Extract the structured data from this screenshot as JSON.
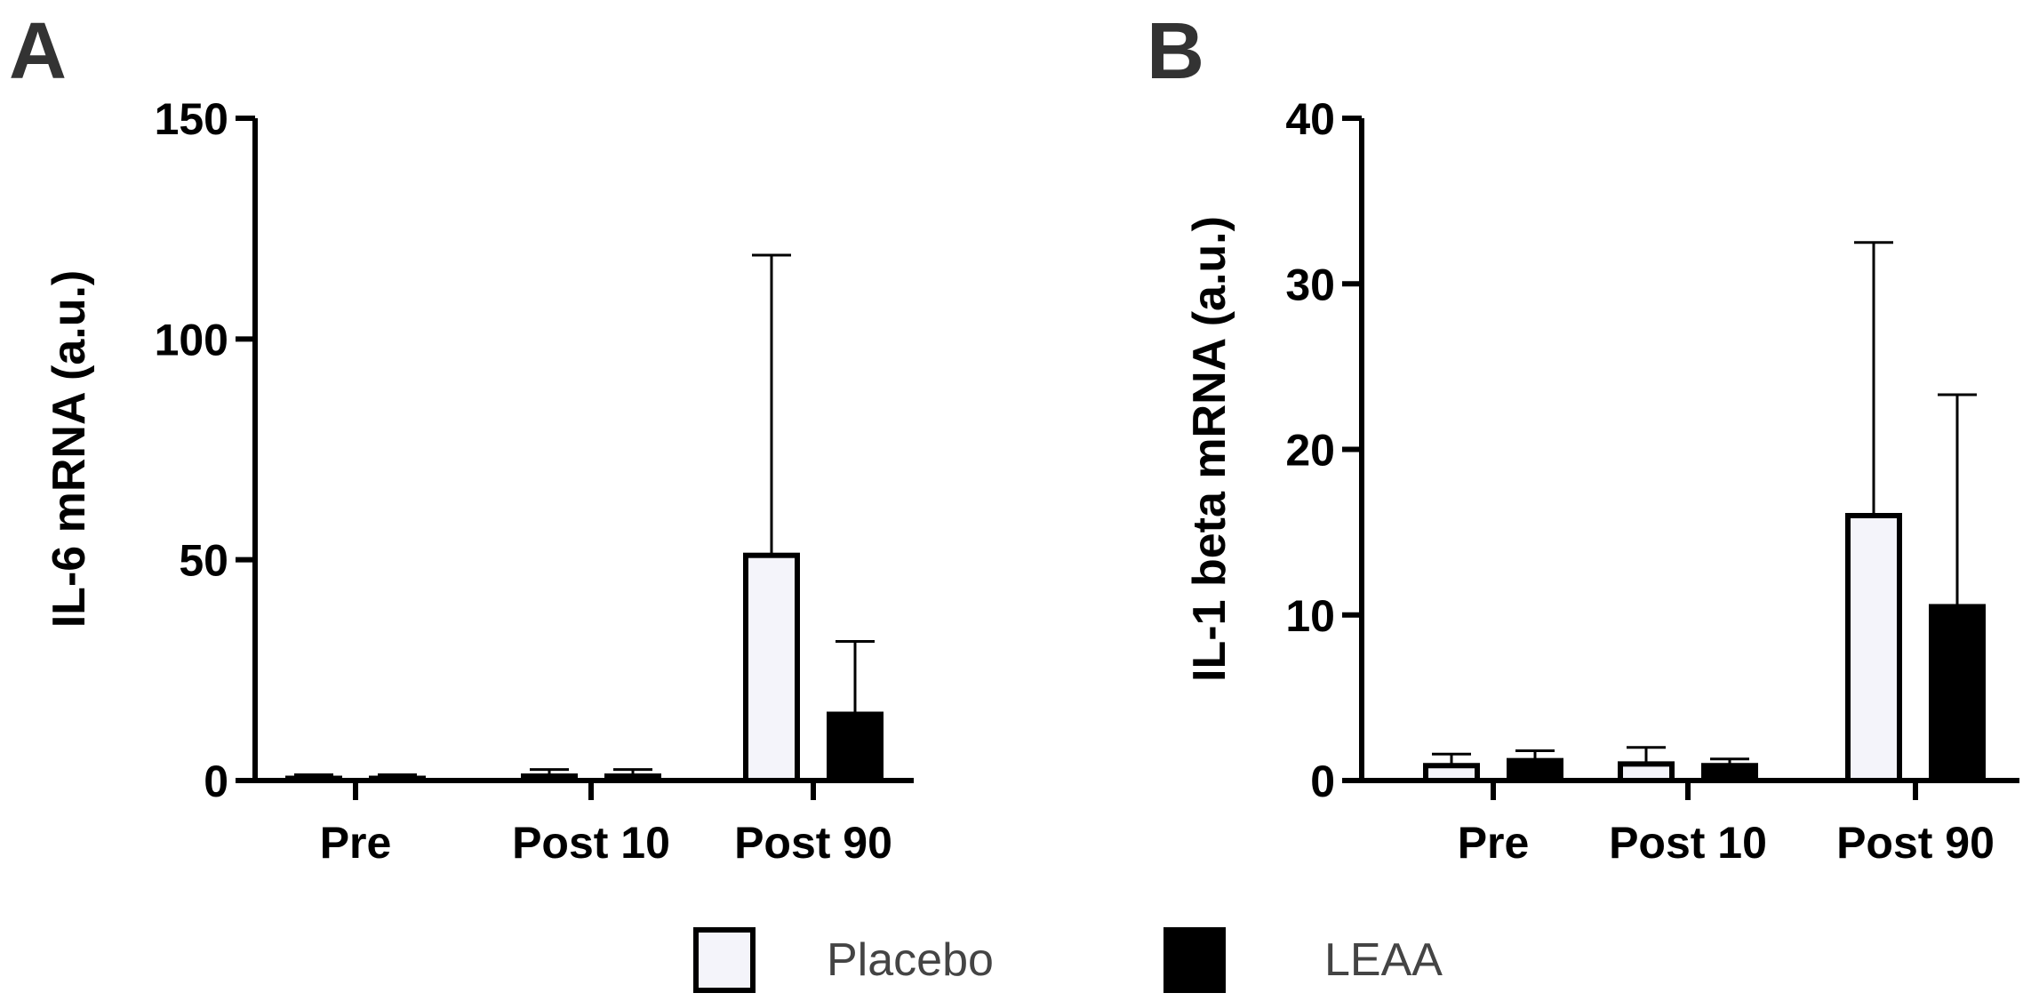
{
  "panels": [
    {
      "letter": "A"
    },
    {
      "letter": "B"
    }
  ],
  "legend": {
    "items": [
      {
        "label": "Placebo",
        "fill": "#f4f4fa"
      },
      {
        "label": "LEAA",
        "fill": "#000000"
      }
    ]
  },
  "colors": {
    "placebo_fill": "#f4f4fa",
    "leaa_fill": "#000000",
    "axis": "#000000",
    "letter": "#333333"
  },
  "chart_data": [
    {
      "type": "bar",
      "panel": "A",
      "title": "",
      "xlabel": "",
      "ylabel": "IL-6 mRNA (a.u.)",
      "categories": [
        "Pre",
        "Post 10",
        "Post 90"
      ],
      "ylim": [
        0,
        150
      ],
      "yticks": [
        "0",
        "50",
        "100",
        "150"
      ],
      "series": [
        {
          "name": "Placebo",
          "values": [
            0.5,
            1.0,
            51
          ],
          "errors": [
            0.8,
            1.5,
            68
          ]
        },
        {
          "name": "LEAA",
          "values": [
            0.5,
            1.0,
            15
          ],
          "errors": [
            0.8,
            1.5,
            16.5
          ]
        }
      ]
    },
    {
      "type": "bar",
      "panel": "B",
      "title": "",
      "xlabel": "",
      "ylabel": "IL-1 beta mRNA (a.u.)",
      "categories": [
        "Pre",
        "Post 10",
        "Post 90"
      ],
      "ylim": [
        0,
        40
      ],
      "yticks": [
        "0",
        "10",
        "20",
        "30",
        "40"
      ],
      "series": [
        {
          "name": "Placebo",
          "values": [
            0.9,
            1.0,
            16
          ],
          "errors": [
            0.7,
            1.0,
            16.5
          ]
        },
        {
          "name": "LEAA",
          "values": [
            1.2,
            0.9,
            10.5
          ],
          "errors": [
            0.6,
            0.4,
            12.8
          ]
        }
      ]
    }
  ]
}
